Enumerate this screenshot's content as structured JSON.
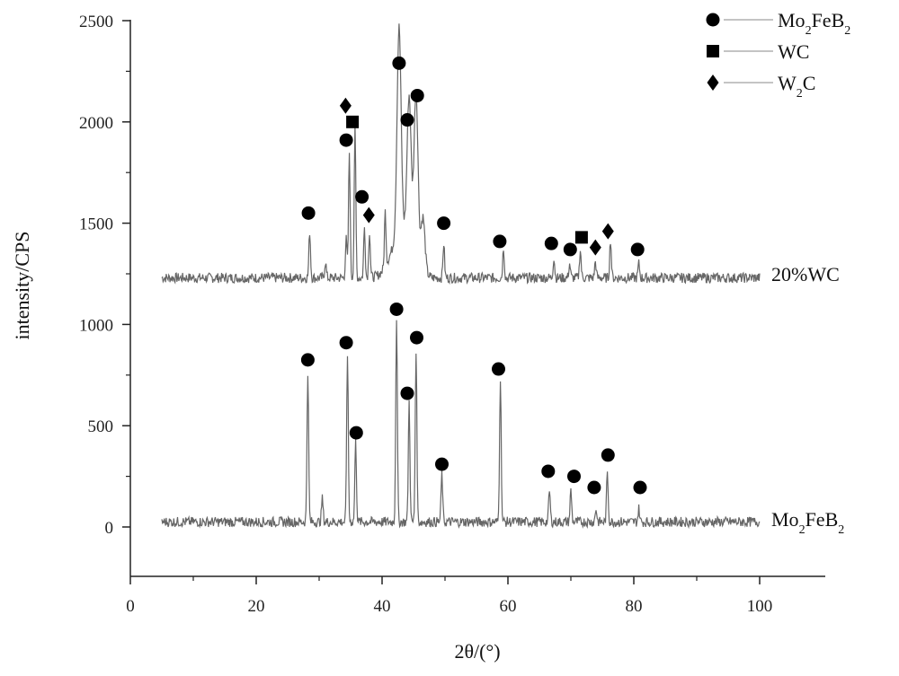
{
  "chart_data": {
    "type": "line",
    "xlabel": "2θ/(°)",
    "ylabel": "intensity/CPS",
    "xlim": [
      0,
      105
    ],
    "ylim": [
      -300,
      2500
    ],
    "xticks": [
      "0",
      "20",
      "40",
      "60",
      "80",
      "100"
    ],
    "yticks": [
      "0",
      "500",
      "1000",
      "1500",
      "2000",
      "2500"
    ],
    "grid": false,
    "legend_position": "top-right",
    "legend": [
      {
        "symbol": "circle",
        "label": "Mo",
        "sub": "2",
        "label2": "FeB",
        "sub2": "2"
      },
      {
        "symbol": "square",
        "label": "WC",
        "sub": "",
        "label2": "",
        "sub2": ""
      },
      {
        "symbol": "diamond",
        "label": "W",
        "sub": "2",
        "label2": "C",
        "sub2": ""
      }
    ],
    "series": [
      {
        "name": "20%WC",
        "baseline": 1230,
        "peaks": [
          {
            "x": 28.5,
            "y": 1460
          },
          {
            "x": 31.0,
            "y": 1310
          },
          {
            "x": 34.3,
            "y": 1420
          },
          {
            "x": 34.8,
            "y": 1850
          },
          {
            "x": 35.7,
            "y": 1970
          },
          {
            "x": 37.2,
            "y": 1480
          },
          {
            "x": 38.0,
            "y": 1460
          },
          {
            "x": 40.5,
            "y": 1500
          },
          {
            "x": 42.7,
            "y": 2250
          },
          {
            "x": 44.3,
            "y": 1950
          },
          {
            "x": 45.4,
            "y": 2060
          },
          {
            "x": 46.5,
            "y": 1500
          },
          {
            "x": 49.8,
            "y": 1400
          },
          {
            "x": 59.3,
            "y": 1380
          },
          {
            "x": 67.3,
            "y": 1330
          },
          {
            "x": 69.8,
            "y": 1300
          },
          {
            "x": 71.5,
            "y": 1370
          },
          {
            "x": 73.9,
            "y": 1310
          },
          {
            "x": 76.3,
            "y": 1420
          },
          {
            "x": 80.8,
            "y": 1300
          }
        ]
      },
      {
        "name": "Mo2FeB2",
        "baseline": 25,
        "peaks": [
          {
            "x": 28.2,
            "y": 770
          },
          {
            "x": 30.5,
            "y": 140
          },
          {
            "x": 34.5,
            "y": 860
          },
          {
            "x": 35.8,
            "y": 420
          },
          {
            "x": 42.3,
            "y": 1040
          },
          {
            "x": 44.3,
            "y": 620
          },
          {
            "x": 45.4,
            "y": 880
          },
          {
            "x": 49.5,
            "y": 260
          },
          {
            "x": 58.8,
            "y": 740
          },
          {
            "x": 66.6,
            "y": 180
          },
          {
            "x": 70.0,
            "y": 180
          },
          {
            "x": 74.0,
            "y": 90
          },
          {
            "x": 75.8,
            "y": 270
          },
          {
            "x": 80.8,
            "y": 90
          }
        ]
      }
    ],
    "markers": [
      {
        "x": 28.3,
        "y": 1550,
        "symbol": "circle"
      },
      {
        "x": 34.3,
        "y": 1910,
        "symbol": "circle"
      },
      {
        "x": 34.2,
        "y": 2080,
        "symbol": "diamond"
      },
      {
        "x": 35.3,
        "y": 2000,
        "symbol": "square"
      },
      {
        "x": 36.8,
        "y": 1630,
        "symbol": "circle"
      },
      {
        "x": 37.9,
        "y": 1540,
        "symbol": "diamond"
      },
      {
        "x": 42.7,
        "y": 2290,
        "symbol": "circle"
      },
      {
        "x": 44.0,
        "y": 2010,
        "symbol": "circle"
      },
      {
        "x": 45.6,
        "y": 2130,
        "symbol": "circle"
      },
      {
        "x": 49.8,
        "y": 1500,
        "symbol": "circle"
      },
      {
        "x": 58.7,
        "y": 1410,
        "symbol": "circle"
      },
      {
        "x": 66.9,
        "y": 1400,
        "symbol": "circle"
      },
      {
        "x": 69.9,
        "y": 1370,
        "symbol": "circle"
      },
      {
        "x": 71.7,
        "y": 1430,
        "symbol": "square"
      },
      {
        "x": 73.9,
        "y": 1380,
        "symbol": "diamond"
      },
      {
        "x": 75.9,
        "y": 1460,
        "symbol": "diamond"
      },
      {
        "x": 80.6,
        "y": 1370,
        "symbol": "circle"
      },
      {
        "x": 28.2,
        "y": 825,
        "symbol": "circle"
      },
      {
        "x": 34.3,
        "y": 910,
        "symbol": "circle"
      },
      {
        "x": 35.9,
        "y": 465,
        "symbol": "circle"
      },
      {
        "x": 42.3,
        "y": 1075,
        "symbol": "circle"
      },
      {
        "x": 44.0,
        "y": 660,
        "symbol": "circle"
      },
      {
        "x": 45.5,
        "y": 935,
        "symbol": "circle"
      },
      {
        "x": 49.5,
        "y": 310,
        "symbol": "circle"
      },
      {
        "x": 58.5,
        "y": 780,
        "symbol": "circle"
      },
      {
        "x": 66.4,
        "y": 275,
        "symbol": "circle"
      },
      {
        "x": 70.5,
        "y": 250,
        "symbol": "circle"
      },
      {
        "x": 73.7,
        "y": 195,
        "symbol": "circle"
      },
      {
        "x": 75.9,
        "y": 355,
        "symbol": "circle"
      },
      {
        "x": 81.0,
        "y": 195,
        "symbol": "circle"
      }
    ],
    "series_labels": [
      {
        "text": "20%WC",
        "sub": "",
        "text2": "",
        "sub2": "",
        "at_y": 1250
      },
      {
        "text": "Mo",
        "sub": "2",
        "text2": "FeB",
        "sub2": "2",
        "at_y": 40
      }
    ],
    "line_color": "#666666",
    "marker_color": "#000000"
  }
}
